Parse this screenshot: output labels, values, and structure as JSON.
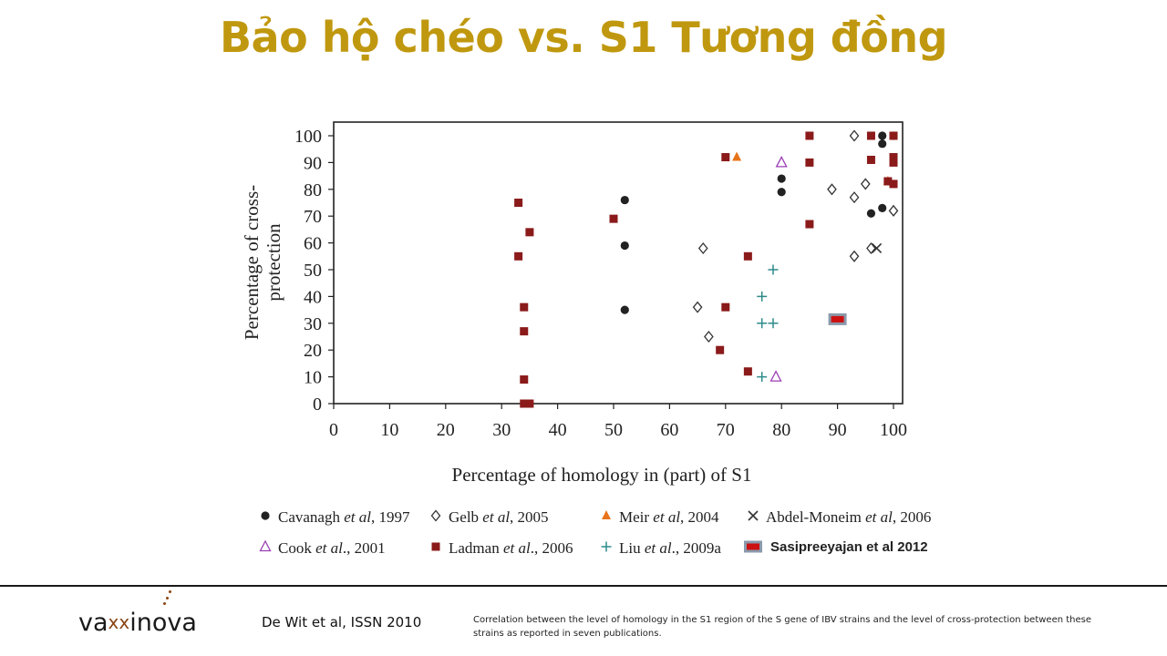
{
  "slide": {
    "title": "Bảo hộ chéo vs. S1 Tương đồng",
    "citation": "De Wit et al, ISSN 2010",
    "caption": "Correlation between the level of homology in the S1 region of the S gene of IBV strains and the level of cross-protection between these strains as reported in seven publications.",
    "logo": {
      "pre": "va",
      "xx": "xx",
      "post": "inova"
    }
  },
  "chart_data": {
    "type": "scatter",
    "xlabel": "Percentage of homology in (part) of S1",
    "ylabel": [
      "Percentage of cross-",
      "protection"
    ],
    "xlim": [
      0,
      100
    ],
    "ylim": [
      0,
      100
    ],
    "xticks": [
      0,
      10,
      20,
      30,
      40,
      50,
      60,
      70,
      80,
      90,
      100
    ],
    "yticks": [
      0,
      10,
      20,
      30,
      40,
      50,
      60,
      70,
      80,
      90,
      100
    ],
    "grid": false,
    "legend_position": "bottom",
    "series": [
      {
        "name": [
          "Cavanagh ",
          "et al",
          ", 1997"
        ],
        "marker": "filled-circle",
        "color": "#222222",
        "points": [
          [
            52,
            76
          ],
          [
            52,
            59
          ],
          [
            52,
            35
          ],
          [
            80,
            84
          ],
          [
            80,
            79
          ],
          [
            96,
            71
          ],
          [
            98,
            73
          ],
          [
            98,
            97
          ],
          [
            98,
            100
          ],
          [
            100,
            100
          ]
        ]
      },
      {
        "name": [
          "Gelb ",
          "et al",
          ", 2005"
        ],
        "marker": "open-diamond",
        "color": "#333333",
        "points": [
          [
            65,
            36
          ],
          [
            66,
            58
          ],
          [
            67,
            25
          ],
          [
            89,
            80
          ],
          [
            93,
            100
          ],
          [
            93,
            77
          ],
          [
            93,
            55
          ],
          [
            95,
            82
          ],
          [
            96,
            58
          ],
          [
            100,
            72
          ]
        ]
      },
      {
        "name": [
          "Meir ",
          "et al",
          ", 2004"
        ],
        "marker": "filled-triangle",
        "color": "#e8731a",
        "points": [
          [
            72,
            92
          ],
          [
            99,
            83
          ]
        ]
      },
      {
        "name": [
          "Abdel-Moneim ",
          "et al",
          ", 2006"
        ],
        "marker": "cross-x",
        "color": "#333333",
        "points": [
          [
            97,
            58
          ]
        ]
      },
      {
        "name": [
          "Cook ",
          "et al",
          "., 2001"
        ],
        "marker": "open-triangle",
        "color": "#9b3fb5",
        "points": [
          [
            80,
            90
          ],
          [
            79,
            10
          ]
        ]
      },
      {
        "name": [
          "Ladman ",
          "et al",
          "., 2006"
        ],
        "marker": "filled-square",
        "color": "#8b1a1a",
        "points": [
          [
            33,
            75
          ],
          [
            33,
            55
          ],
          [
            34,
            36
          ],
          [
            34,
            27
          ],
          [
            34,
            9
          ],
          [
            34,
            0
          ],
          [
            35,
            64
          ],
          [
            35,
            0
          ],
          [
            50,
            69
          ],
          [
            69,
            20
          ],
          [
            70,
            92
          ],
          [
            70,
            36
          ],
          [
            74,
            55
          ],
          [
            74,
            12
          ],
          [
            85,
            100
          ],
          [
            85,
            90
          ],
          [
            85,
            67
          ],
          [
            96,
            100
          ],
          [
            96,
            91
          ],
          [
            99,
            83
          ],
          [
            100,
            100
          ],
          [
            100,
            92
          ],
          [
            100,
            90
          ],
          [
            100,
            82
          ]
        ]
      },
      {
        "name": [
          "Liu ",
          "et al",
          "., 2009a"
        ],
        "marker": "plus",
        "color": "#2e8b8b",
        "points": [
          [
            78.5,
            50
          ],
          [
            76.5,
            40
          ],
          [
            76.5,
            30
          ],
          [
            78.5,
            30
          ],
          [
            76.5,
            10
          ]
        ]
      },
      {
        "name": [
          "Sasipreeyajan et al 2012"
        ],
        "marker": "highlight-box",
        "color": "#cc1111",
        "points": [
          [
            90,
            31.5
          ]
        ]
      }
    ]
  }
}
